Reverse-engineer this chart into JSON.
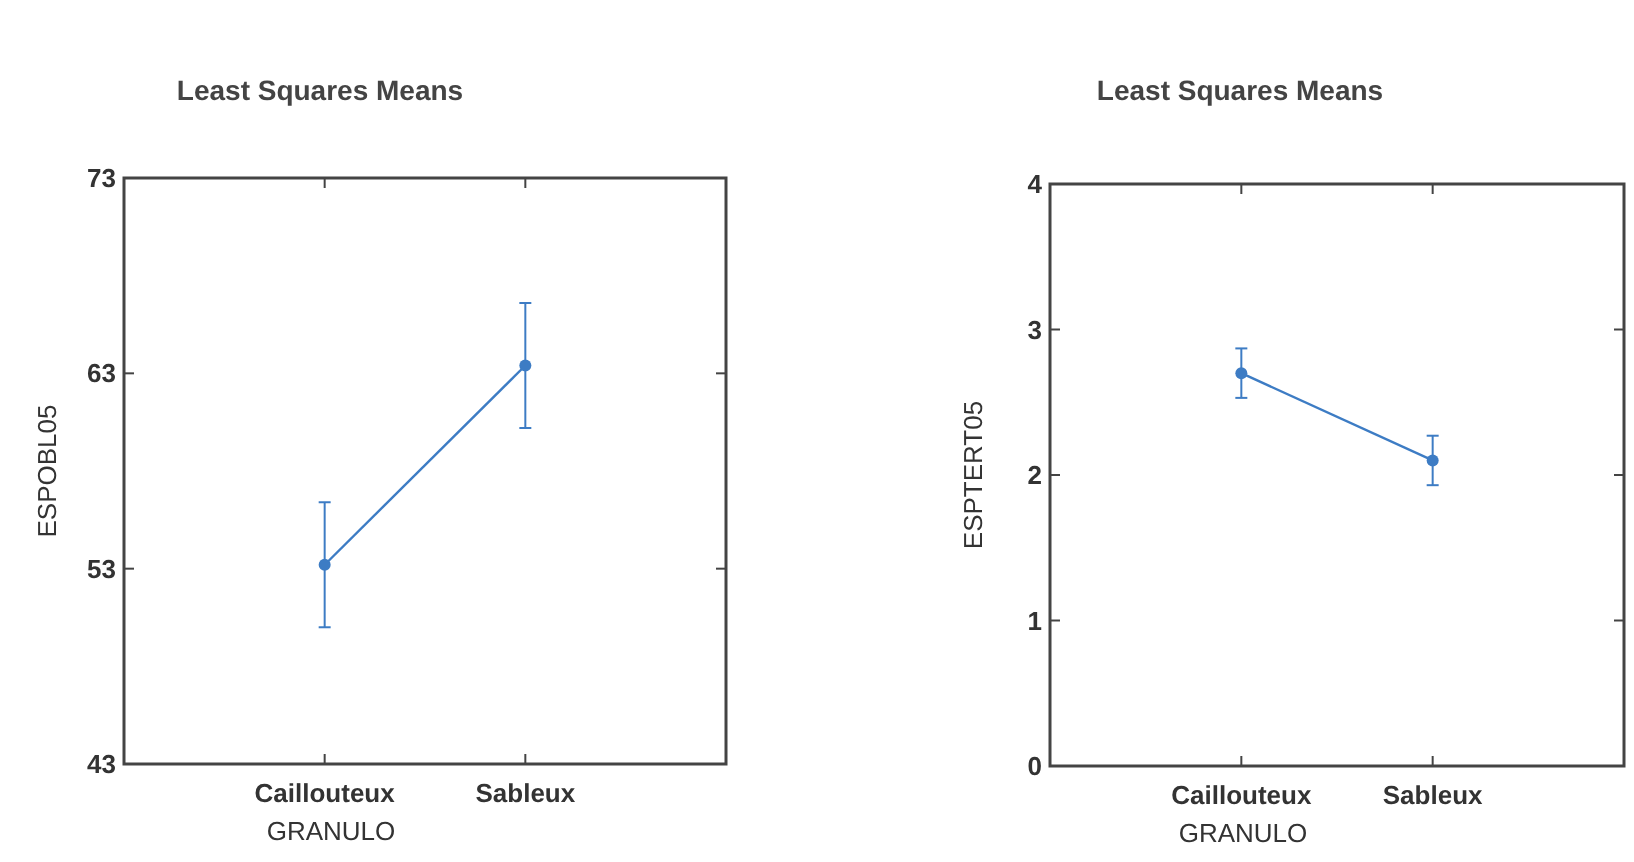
{
  "chart_data": [
    {
      "type": "line",
      "title": "Least Squares Means",
      "xlabel": "GRANULO",
      "ylabel": "ESPOBL05",
      "categories": [
        "Caillouteux",
        "Sableux"
      ],
      "values": [
        53.2,
        63.4
      ],
      "errors": [
        3.2,
        3.2
      ],
      "color": "#3d7cc4",
      "marker": "circle",
      "ylim": [
        43,
        73
      ],
      "yticks": [
        43,
        53,
        63,
        73
      ],
      "grid": false
    },
    {
      "type": "line",
      "title": "Least Squares Means",
      "xlabel": "GRANULO",
      "ylabel": "ESPTERT05",
      "categories": [
        "Caillouteux",
        "Sableux"
      ],
      "values": [
        2.7,
        2.1
      ],
      "errors": [
        0.17,
        0.17
      ],
      "color": "#3d7cc4",
      "marker": "circle",
      "ylim": [
        0,
        4
      ],
      "yticks": [
        0,
        1,
        2,
        3,
        4
      ],
      "grid": false
    }
  ]
}
